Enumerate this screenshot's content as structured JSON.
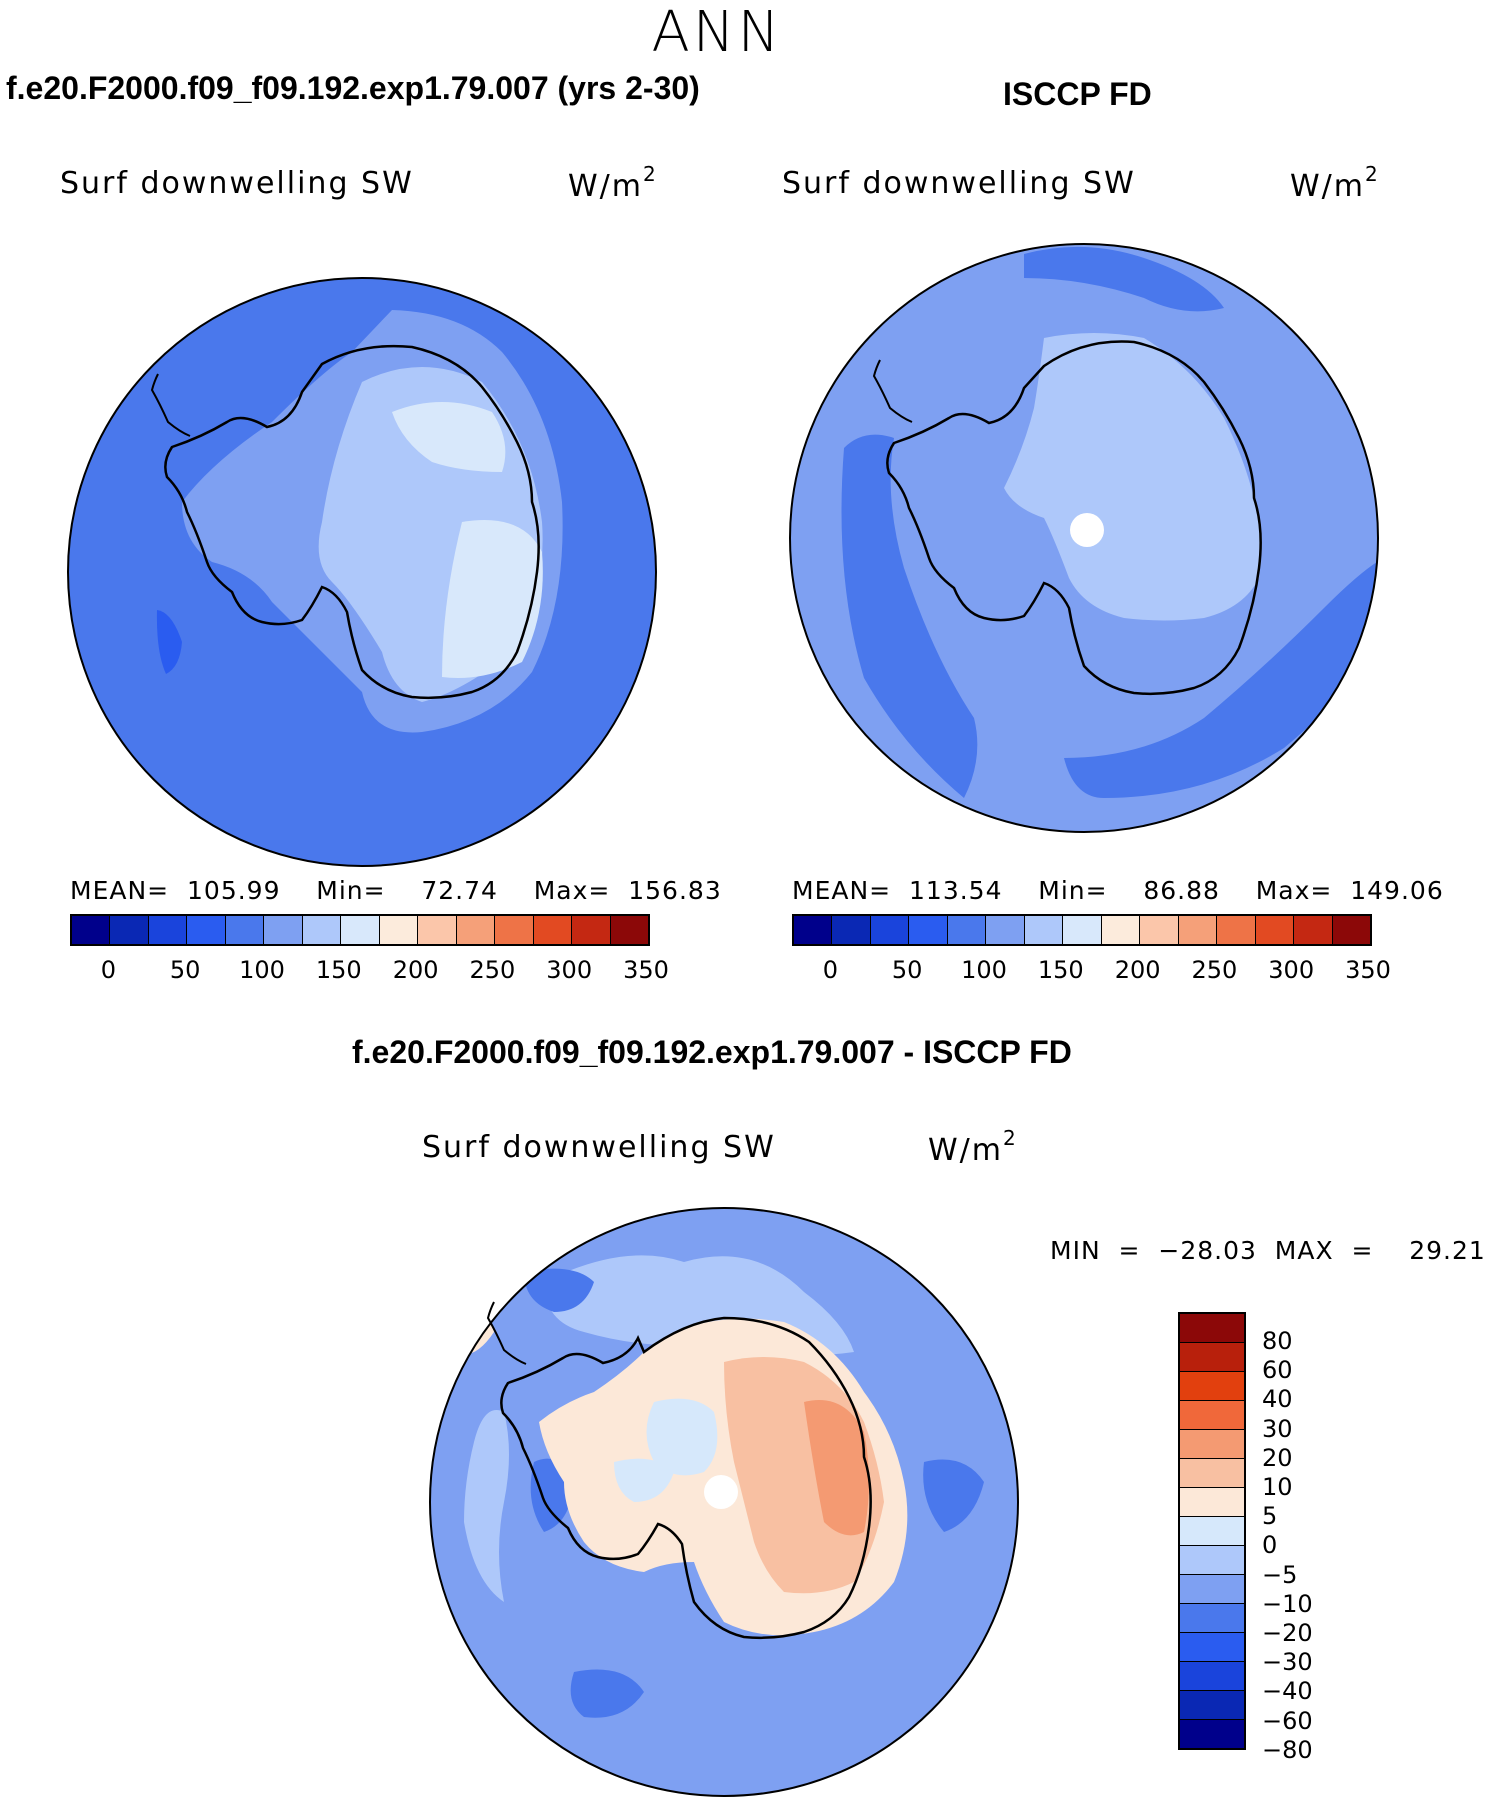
{
  "figure": {
    "season": "ANN"
  },
  "panels": {
    "model": {
      "title": "f.e20.F2000.f09_f09.192.exp1.79.007 (yrs 2-30)",
      "variable": "Surf  downwelling  SW",
      "units_base": "W/m",
      "units_exp": "2",
      "stats": "MEAN=  105.99    Min=    72.74    Max=  156.83"
    },
    "obs": {
      "title": "ISCCP FD",
      "variable": "Surf  downwelling  SW",
      "units_base": "W/m",
      "units_exp": "2",
      "stats": "MEAN=  113.54    Min=    86.88    Max=  149.06"
    },
    "diff": {
      "title": "f.e20.F2000.f09_f09.192.exp1.79.007 - ISCCP FD",
      "variable": "Surf  downwelling  SW",
      "units_base": "W/m",
      "units_exp": "2",
      "stats": "MIN  =  −28.03  MAX  =    29.21"
    }
  },
  "colorbars": {
    "abs": {
      "colors": [
        "#00008b",
        "#0a28b4",
        "#1a44dc",
        "#2a5cf0",
        "#4a78ec",
        "#7ea0f2",
        "#aec8fa",
        "#d8e8fb",
        "#fcebdc",
        "#fbc6aa",
        "#f5a079",
        "#ee7347",
        "#e24a22",
        "#c42812",
        "#8c0808"
      ],
      "tick_labels": [
        "0",
        "50",
        "100",
        "150",
        "200",
        "250",
        "300",
        "350"
      ]
    },
    "diff": {
      "colors": [
        "#8c0808",
        "#b8200c",
        "#e2400e",
        "#f0683a",
        "#f49a72",
        "#f8c0a2",
        "#fce8d8",
        "#d6e8fb",
        "#aec8fa",
        "#7ea0f2",
        "#4a78ec",
        "#2a5cf0",
        "#1a44dc",
        "#0a28b4",
        "#00008b"
      ],
      "tick_labels": [
        "80",
        "60",
        "40",
        "30",
        "20",
        "10",
        "5",
        "0",
        "−5",
        "−10",
        "−20",
        "−30",
        "−40",
        "−60",
        "−80"
      ]
    }
  },
  "chart_data": [
    {
      "type": "heatmap",
      "title": "f.e20.F2000.f09_f09.192.exp1.79.007 (yrs 2-30)",
      "variable": "Surf downwelling SW",
      "units": "W/m^2",
      "projection": "south polar stereographic",
      "mean": 105.99,
      "min": 72.74,
      "max": 156.83,
      "contour_levels": [
        0,
        25,
        50,
        75,
        100,
        125,
        150,
        175,
        200,
        225,
        250,
        275,
        300,
        325,
        350
      ]
    },
    {
      "type": "heatmap",
      "title": "ISCCP FD",
      "variable": "Surf downwelling SW",
      "units": "W/m^2",
      "projection": "south polar stereographic",
      "mean": 113.54,
      "min": 86.88,
      "max": 149.06,
      "contour_levels": [
        0,
        25,
        50,
        75,
        100,
        125,
        150,
        175,
        200,
        225,
        250,
        275,
        300,
        325,
        350
      ]
    },
    {
      "type": "heatmap",
      "title": "f.e20.F2000.f09_f09.192.exp1.79.007 - ISCCP FD",
      "variable": "Surf downwelling SW",
      "units": "W/m^2",
      "projection": "south polar stereographic",
      "min": -28.03,
      "max": 29.21,
      "contour_levels": [
        -80,
        -60,
        -40,
        -30,
        -20,
        -10,
        -5,
        0,
        5,
        10,
        20,
        30,
        40,
        60,
        80
      ]
    }
  ]
}
